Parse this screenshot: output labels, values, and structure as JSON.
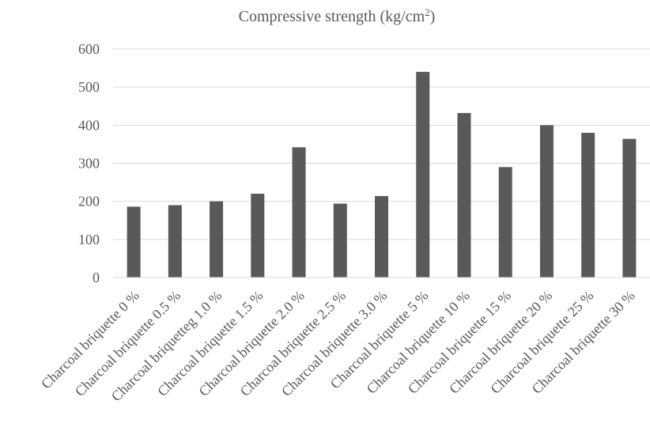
{
  "chart_data": {
    "type": "bar",
    "title": "Compressive strength (kg/cm",
    "title_superscript": "2",
    "title_suffix": ")",
    "xlabel": "",
    "ylabel": "",
    "categories": [
      "Charcoal briquette  0 %",
      "Charcoal briquette  0.5 %",
      "Charcoal briquetteg  1.0 %",
      "Charcoal briquette  1.5 %",
      "Charcoal briquette  2.0 %",
      "Charcoal briquette  2.5 %",
      "Charcoal briquette  3.0 %",
      "Charcoal briquette  5 %",
      "Charcoal briquette  10 %",
      "Charcoal briquette 15 %",
      "Charcoal briquette  20 %",
      "Charcoal briquette  25 %",
      "Charcoal briquette  30 %"
    ],
    "values": [
      186,
      190,
      200,
      220,
      342,
      194,
      214,
      540,
      432,
      290,
      400,
      380,
      364
    ],
    "ylim": [
      0,
      600
    ],
    "yticks": [
      0,
      100,
      200,
      300,
      400,
      500,
      600
    ],
    "grid": true,
    "legend": "none",
    "bar_color": "#595959"
  }
}
